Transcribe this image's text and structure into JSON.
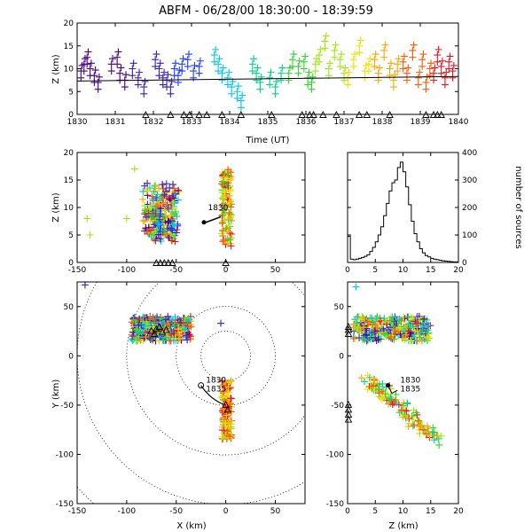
{
  "title": "ABFM - 06/28/00 18:30:00 - 18:39:59",
  "chart_data": [
    {
      "panel": "z-vs-time",
      "type": "scatter",
      "xlabel": "Time (UT)",
      "ylabel": "Z (km)",
      "xlim": [
        1830,
        1840
      ],
      "ylim": [
        0,
        20
      ],
      "xticks": [
        "1830",
        "1831",
        "1832",
        "1833",
        "1834",
        "1835",
        "1836",
        "1837",
        "1838",
        "1839",
        "1840"
      ],
      "yticks": [
        "0",
        "5",
        "10",
        "15",
        "20"
      ],
      "series": [
        {
          "color": "#4b0082",
          "t": [
            1830.1,
            1830.18,
            1830.26,
            1830.34,
            1830.45,
            1830.55,
            1830.9,
            1831.05,
            1831.12,
            1831.25
          ],
          "z": [
            9.5,
            11,
            12.5,
            10,
            8.5,
            7,
            11,
            12.5,
            9,
            7.5
          ]
        },
        {
          "color": "#3a1fb5",
          "t": [
            1831.45,
            1831.6,
            1831.75,
            1832.05,
            1832.15,
            1832.25,
            1832.35,
            1832.45
          ],
          "z": [
            10,
            8,
            6,
            12,
            10,
            8,
            7.5,
            6
          ]
        },
        {
          "color": "#1f3fff",
          "t": [
            1832.55,
            1832.65,
            1832.75,
            1832.9,
            1833.05,
            1833.2
          ],
          "z": [
            10,
            8.5,
            11,
            12,
            9.5,
            10.5
          ]
        },
        {
          "color": "#00c8e6",
          "t": [
            1833.6,
            1833.7,
            1833.8,
            1833.95,
            1834.05,
            1834.2,
            1834.3
          ],
          "z": [
            13,
            11,
            9,
            8,
            6,
            5,
            3
          ]
        },
        {
          "color": "#00d28c",
          "t": [
            1834.6,
            1834.7,
            1834.8,
            1835.05,
            1835.2,
            1835.35
          ],
          "z": [
            11,
            9,
            7,
            8,
            6,
            9
          ]
        },
        {
          "color": "#32d232",
          "t": [
            1835.55,
            1835.65,
            1835.8,
            1835.95,
            1836.05,
            1836.15
          ],
          "z": [
            9,
            12,
            10.5,
            11.5,
            8,
            7
          ]
        },
        {
          "color": "#a0e614",
          "t": [
            1836.25,
            1836.35,
            1836.5,
            1836.6,
            1836.75,
            1836.9,
            1837.0
          ],
          "z": [
            11,
            13,
            16,
            10,
            14,
            12,
            9
          ]
        },
        {
          "color": "#f0e000",
          "t": [
            1837.1,
            1837.25,
            1837.4,
            1837.55,
            1837.65
          ],
          "z": [
            8,
            12,
            15,
            9.5,
            11
          ]
        },
        {
          "color": "#ffa500",
          "t": [
            1837.8,
            1837.9,
            1838.05,
            1838.2,
            1838.3,
            1838.4
          ],
          "z": [
            12,
            9,
            14,
            10,
            7.5,
            11
          ]
        },
        {
          "color": "#ff5a00",
          "t": [
            1838.55,
            1838.65,
            1838.8,
            1838.95,
            1839.05,
            1839.15,
            1839.25
          ],
          "z": [
            11.5,
            9,
            14,
            8,
            12,
            7,
            10
          ]
        },
        {
          "color": "#e6141e",
          "t": [
            1839.35,
            1839.45,
            1839.55,
            1839.65,
            1839.75,
            1839.85
          ],
          "z": [
            9,
            13,
            10.5,
            8,
            11.5,
            9.5
          ]
        }
      ],
      "trend_line": {
        "t": [
          1830,
          1840
        ],
        "z": [
          7.3,
          8.3
        ]
      },
      "triangles_at_z0": [
        1831.8,
        1832.45,
        1832.8,
        1832.95,
        1833.2,
        1833.4,
        1833.8,
        1834.3,
        1835.1,
        1835.9,
        1836.1,
        1836.2,
        1836.45,
        1836.8,
        1837.4,
        1837.6,
        1838.2,
        1839.15,
        1839.35,
        1839.45,
        1839.55
      ]
    },
    {
      "panel": "z-vs-x",
      "type": "scatter",
      "ylabel": "Z (km)",
      "xlim": [
        -150,
        80
      ],
      "ylim": [
        0,
        20
      ],
      "xticks": [
        "-150",
        "-100",
        "-50",
        "0",
        "50"
      ],
      "yticks": [
        "0",
        "5",
        "10",
        "15",
        "20"
      ],
      "annotation": "1830"
    },
    {
      "panel": "histogram",
      "type": "bar",
      "xlabel": "",
      "ylabel": "number of sources",
      "xlim": [
        0,
        20
      ],
      "ylim": [
        0,
        400
      ],
      "xticks": [
        "0",
        "5",
        "10",
        "15",
        "20"
      ],
      "yticks": [
        "0",
        "100",
        "200",
        "300",
        "400"
      ],
      "bin_centers": [
        0.25,
        0.75,
        1.25,
        1.75,
        2.25,
        2.75,
        3.25,
        3.75,
        4.25,
        4.75,
        5.25,
        5.75,
        6.25,
        6.75,
        7.25,
        7.75,
        8.25,
        8.75,
        9.25,
        9.75,
        10.25,
        10.75,
        11.25,
        11.75,
        12.25,
        12.75,
        13.25,
        13.75,
        14.25,
        14.75,
        15.25,
        15.75,
        16.25,
        16.75,
        17.25,
        17.75,
        18.25,
        18.75,
        19.25,
        19.75
      ],
      "values": [
        95,
        12,
        10,
        12,
        15,
        18,
        22,
        28,
        40,
        55,
        75,
        100,
        130,
        170,
        215,
        260,
        290,
        300,
        345,
        365,
        330,
        275,
        210,
        150,
        105,
        75,
        50,
        35,
        25,
        20,
        15,
        12,
        10,
        8,
        6,
        5,
        4,
        3,
        2,
        2
      ]
    },
    {
      "panel": "y-vs-x",
      "type": "scatter",
      "xlabel": "X (km)",
      "ylabel": "Y (km)",
      "xlim": [
        -150,
        80
      ],
      "ylim": [
        -150,
        75
      ],
      "xticks": [
        "-150",
        "-100",
        "-50",
        "0",
        "50"
      ],
      "yticks": [
        "-150",
        "-100",
        "-50",
        "0",
        "50"
      ],
      "range_rings_km": [
        25,
        50,
        100,
        150,
        200
      ],
      "annotations": [
        "1830",
        "1835"
      ]
    },
    {
      "panel": "y-vs-z",
      "type": "scatter",
      "xlabel": "Z (km)",
      "xlim": [
        0,
        20
      ],
      "ylim": [
        -150,
        75
      ],
      "xticks": [
        "0",
        "5",
        "10",
        "15",
        "20"
      ],
      "yticks": [
        "-150",
        "-100",
        "-50",
        "0",
        "50"
      ],
      "annotations": [
        "1830",
        "1835"
      ]
    }
  ]
}
